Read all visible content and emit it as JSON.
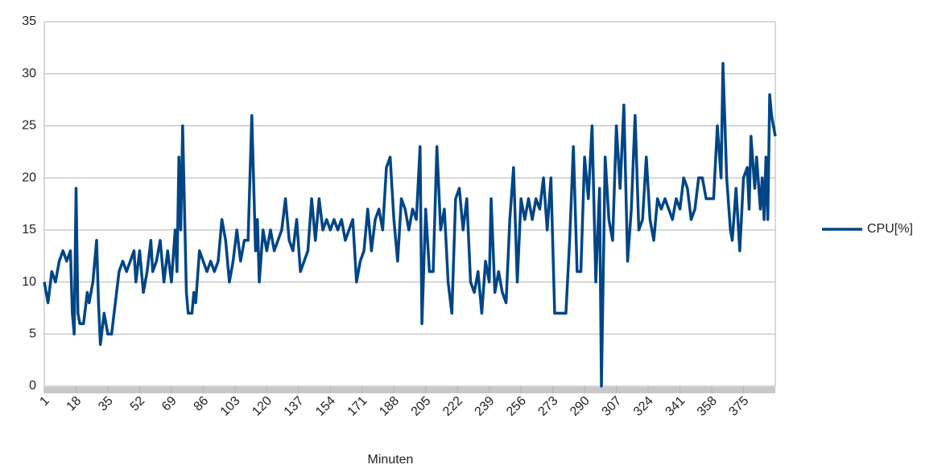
{
  "chart_data": {
    "type": "line",
    "x_label": "Minuten",
    "x": [
      1,
      3,
      5,
      7,
      9,
      11,
      13,
      15,
      16,
      17,
      18,
      19,
      20,
      22,
      24,
      25,
      27,
      29,
      30,
      31,
      33,
      35,
      37,
      39,
      41,
      43,
      45,
      47,
      49,
      50,
      52,
      54,
      56,
      58,
      59,
      61,
      63,
      65,
      67,
      69,
      71,
      72,
      73,
      74,
      75,
      76,
      77,
      78,
      80,
      81,
      82,
      84,
      86,
      88,
      90,
      92,
      94,
      96,
      98,
      100,
      102,
      104,
      106,
      108,
      110,
      112,
      114,
      115,
      116,
      118,
      120,
      122,
      124,
      126,
      128,
      130,
      132,
      134,
      136,
      138,
      140,
      142,
      144,
      146,
      148,
      150,
      152,
      154,
      156,
      158,
      160,
      162,
      164,
      166,
      168,
      170,
      172,
      174,
      176,
      178,
      180,
      182,
      184,
      186,
      188,
      190,
      192,
      194,
      196,
      198,
      200,
      202,
      203,
      205,
      207,
      209,
      211,
      213,
      215,
      217,
      219,
      221,
      223,
      225,
      227,
      229,
      231,
      233,
      235,
      237,
      239,
      240,
      242,
      244,
      246,
      248,
      250,
      252,
      254,
      256,
      258,
      260,
      262,
      264,
      266,
      268,
      270,
      272,
      274,
      276,
      278,
      280,
      282,
      284,
      286,
      288,
      290,
      292,
      294,
      296,
      298,
      299,
      301,
      303,
      305,
      307,
      309,
      311,
      313,
      315,
      317,
      319,
      321,
      323,
      325,
      327,
      329,
      331,
      333,
      335,
      337,
      339,
      341,
      343,
      345,
      347,
      349,
      351,
      353,
      355,
      357,
      359,
      361,
      363,
      364,
      366,
      368,
      369,
      371,
      373,
      375,
      377,
      378,
      379,
      381,
      382,
      384,
      385,
      386,
      387,
      388,
      389,
      390,
      392
    ],
    "series": [
      {
        "name": "CPU[%]",
        "color": "#004586",
        "values": [
          10,
          8,
          11,
          10,
          12,
          13,
          12,
          13,
          7,
          5,
          19,
          7,
          6,
          6,
          9,
          8,
          10,
          14,
          8,
          4,
          7,
          5,
          5,
          8,
          11,
          12,
          11,
          12,
          13,
          10,
          13,
          9,
          11,
          14,
          11,
          12,
          14,
          10,
          13,
          10,
          15,
          11,
          22,
          15,
          25,
          17,
          9,
          7,
          7,
          9,
          8,
          13,
          12,
          11,
          12,
          11,
          12,
          16,
          14,
          10,
          12,
          15,
          12,
          14,
          14,
          26,
          13,
          16,
          10,
          15,
          13,
          15,
          13,
          14,
          15,
          18,
          14,
          13,
          16,
          11,
          12,
          13,
          18,
          14,
          18,
          15,
          16,
          15,
          16,
          15,
          16,
          14,
          15,
          16,
          10,
          12,
          13,
          17,
          13,
          16,
          17,
          15,
          21,
          22,
          16,
          12,
          18,
          17,
          15,
          17,
          16,
          23,
          6,
          17,
          11,
          11,
          23,
          15,
          17,
          10,
          7,
          18,
          19,
          15,
          18,
          10,
          9,
          11,
          7,
          12,
          10,
          18,
          9,
          11,
          9,
          8,
          16,
          21,
          10,
          18,
          16,
          18,
          16,
          18,
          17,
          20,
          15,
          20,
          7,
          7,
          7,
          7,
          14,
          23,
          11,
          11,
          22,
          18,
          25,
          10,
          19,
          0,
          22,
          16,
          14,
          25,
          19,
          27,
          12,
          17,
          26,
          15,
          16,
          22,
          16,
          14,
          18,
          17,
          18,
          17,
          16,
          18,
          17,
          20,
          19,
          16,
          17,
          20,
          20,
          18,
          18,
          18,
          25,
          20,
          31,
          20,
          15,
          14,
          19,
          13,
          20,
          21,
          17,
          24,
          19,
          22,
          17,
          20,
          16,
          22,
          16,
          28,
          26,
          24
        ]
      }
    ],
    "xlim": [
      1,
      392
    ],
    "xticks": [
      1,
      18,
      35,
      52,
      69,
      86,
      103,
      120,
      137,
      154,
      171,
      188,
      205,
      222,
      239,
      256,
      273,
      290,
      307,
      324,
      341,
      358,
      375
    ],
    "ylim": [
      0,
      35
    ],
    "yticks": [
      0,
      5,
      10,
      15,
      20,
      25,
      30,
      35
    ],
    "grid": true,
    "legend": "right"
  }
}
